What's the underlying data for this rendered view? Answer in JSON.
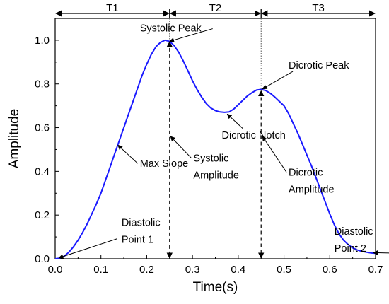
{
  "chart_data": {
    "type": "line",
    "xlabel": "Time(s)",
    "ylabel": "Amplitude",
    "xlim": [
      0.0,
      0.7
    ],
    "ylim": [
      0.0,
      1.1
    ],
    "xticks": [
      0.0,
      0.1,
      0.2,
      0.3,
      0.4,
      0.5,
      0.6,
      0.7
    ],
    "xtick_labels": [
      "0.0",
      "0.1",
      "0.2",
      "0.3",
      "0.4",
      "0.5",
      "0.6",
      "0.7"
    ],
    "yticks": [
      0.0,
      0.2,
      0.4,
      0.6,
      0.8,
      1.0
    ],
    "ytick_labels": [
      "0.0",
      "0.2",
      "0.4",
      "0.6",
      "0.8",
      "1.0"
    ],
    "grid": false,
    "series": [
      {
        "color": "#1a1aff",
        "x": [
          0.0,
          0.01,
          0.02,
          0.03,
          0.04,
          0.05,
          0.06,
          0.07,
          0.08,
          0.09,
          0.1,
          0.11,
          0.12,
          0.13,
          0.14,
          0.15,
          0.16,
          0.17,
          0.18,
          0.19,
          0.2,
          0.21,
          0.22,
          0.23,
          0.24,
          0.25,
          0.26,
          0.27,
          0.28,
          0.29,
          0.3,
          0.31,
          0.32,
          0.33,
          0.34,
          0.35,
          0.36,
          0.37,
          0.38,
          0.39,
          0.4,
          0.41,
          0.42,
          0.43,
          0.44,
          0.45,
          0.46,
          0.47,
          0.48,
          0.49,
          0.5,
          0.51,
          0.52,
          0.53,
          0.54,
          0.55,
          0.56,
          0.57,
          0.58,
          0.59,
          0.6,
          0.61,
          0.62,
          0.63,
          0.64,
          0.65,
          0.66,
          0.67,
          0.68,
          0.69,
          0.7
        ],
        "y": [
          0.0,
          0.003,
          0.012,
          0.03,
          0.055,
          0.085,
          0.12,
          0.16,
          0.205,
          0.25,
          0.3,
          0.36,
          0.42,
          0.48,
          0.54,
          0.6,
          0.66,
          0.72,
          0.78,
          0.84,
          0.89,
          0.935,
          0.97,
          0.99,
          1.0,
          0.995,
          0.975,
          0.945,
          0.905,
          0.86,
          0.815,
          0.775,
          0.74,
          0.71,
          0.69,
          0.678,
          0.672,
          0.67,
          0.672,
          0.685,
          0.705,
          0.725,
          0.745,
          0.76,
          0.772,
          0.775,
          0.77,
          0.757,
          0.74,
          0.72,
          0.7,
          0.665,
          0.62,
          0.575,
          0.525,
          0.475,
          0.425,
          0.37,
          0.315,
          0.26,
          0.205,
          0.155,
          0.115,
          0.085,
          0.065,
          0.05,
          0.04,
          0.034,
          0.03,
          0.027,
          0.025
        ]
      }
    ],
    "segments": [
      {
        "label": "T1",
        "x_start": 0.0,
        "x_end": 0.25
      },
      {
        "label": "T2",
        "x_start": 0.25,
        "x_end": 0.45
      },
      {
        "label": "T3",
        "x_start": 0.45,
        "x_end": 0.7
      }
    ],
    "vertical_lines": [
      {
        "x": 0.25,
        "y": 1.0
      },
      {
        "x": 0.45,
        "y": 0.775
      }
    ],
    "annotations": [
      {
        "name": "systolic-peak",
        "lines": [
          "Systolic Peak"
        ],
        "target": [
          0.25,
          0.995
        ],
        "text_at": [
          0.185,
          1.04
        ]
      },
      {
        "name": "max-slope",
        "lines": [
          "Max Slope"
        ],
        "target": [
          0.137,
          0.52
        ],
        "text_at": [
          0.185,
          0.42
        ]
      },
      {
        "name": "systolic-amplitude",
        "lines": [
          "Systolic",
          "Amplitude"
        ],
        "target": [
          0.252,
          0.56
        ],
        "text_at": [
          0.302,
          0.445
        ]
      },
      {
        "name": "dicrotic-notch",
        "lines": [
          "Dicrotic Notch"
        ],
        "target": [
          0.376,
          0.662
        ],
        "text_at": [
          0.364,
          0.55
        ]
      },
      {
        "name": "dicrotic-peak",
        "lines": [
          "Dicrotic Peak"
        ],
        "target": [
          0.453,
          0.777
        ],
        "text_at": [
          0.51,
          0.87
        ]
      },
      {
        "name": "dicrotic-amplitude",
        "lines": [
          "Dicrotic",
          "Amplitude"
        ],
        "target": [
          0.453,
          0.56
        ],
        "text_at": [
          0.51,
          0.38
        ]
      },
      {
        "name": "diastolic-point-1",
        "lines": [
          "Diastolic",
          "Point 1"
        ],
        "target": [
          0.008,
          0.004
        ],
        "text_at": [
          0.145,
          0.15
        ]
      },
      {
        "name": "diastolic-point-2",
        "lines": [
          "Diastolic",
          "Point 2"
        ],
        "target": [
          0.695,
          0.028
        ],
        "text_at": [
          0.61,
          0.11
        ]
      }
    ]
  }
}
